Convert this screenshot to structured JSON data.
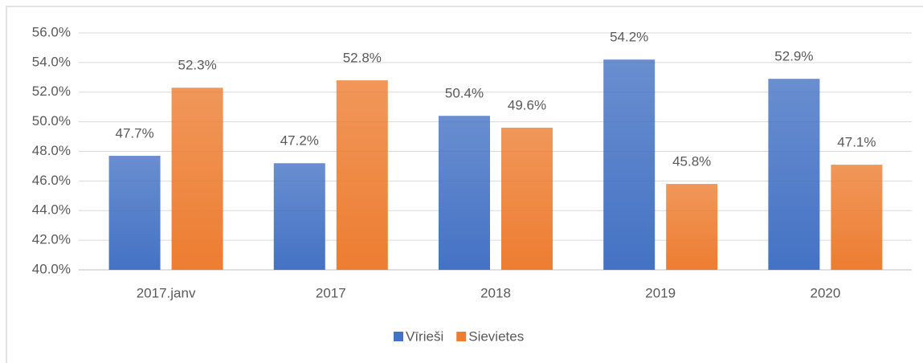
{
  "chart_data": {
    "type": "bar",
    "categories": [
      "2017.janv",
      "2017",
      "2018",
      "2019",
      "2020"
    ],
    "series": [
      {
        "name": "Vīrieši",
        "color": "#4472c4",
        "values": [
          47.7,
          47.2,
          50.4,
          54.2,
          52.9
        ],
        "value_labels": [
          "47.7%",
          "47.2%",
          "50.4%",
          "54.2%",
          "52.9%"
        ]
      },
      {
        "name": "Sievietes",
        "color": "#ed7d31",
        "values": [
          52.3,
          52.8,
          49.6,
          45.8,
          47.1
        ],
        "value_labels": [
          "52.3%",
          "52.8%",
          "49.6%",
          "45.8%",
          "47.1%"
        ]
      }
    ],
    "ylim": [
      40,
      56
    ],
    "yticks": [
      {
        "value": 40,
        "label": "40.0%"
      },
      {
        "value": 42,
        "label": "42.0%"
      },
      {
        "value": 44,
        "label": "44.0%"
      },
      {
        "value": 46,
        "label": "46.0%"
      },
      {
        "value": 48,
        "label": "48.0%"
      },
      {
        "value": 50,
        "label": "50.0%"
      },
      {
        "value": 52,
        "label": "52.0%"
      },
      {
        "value": 54,
        "label": "54.0%"
      },
      {
        "value": 56,
        "label": "56.0%"
      }
    ],
    "grid": true,
    "legend": "bottom"
  }
}
